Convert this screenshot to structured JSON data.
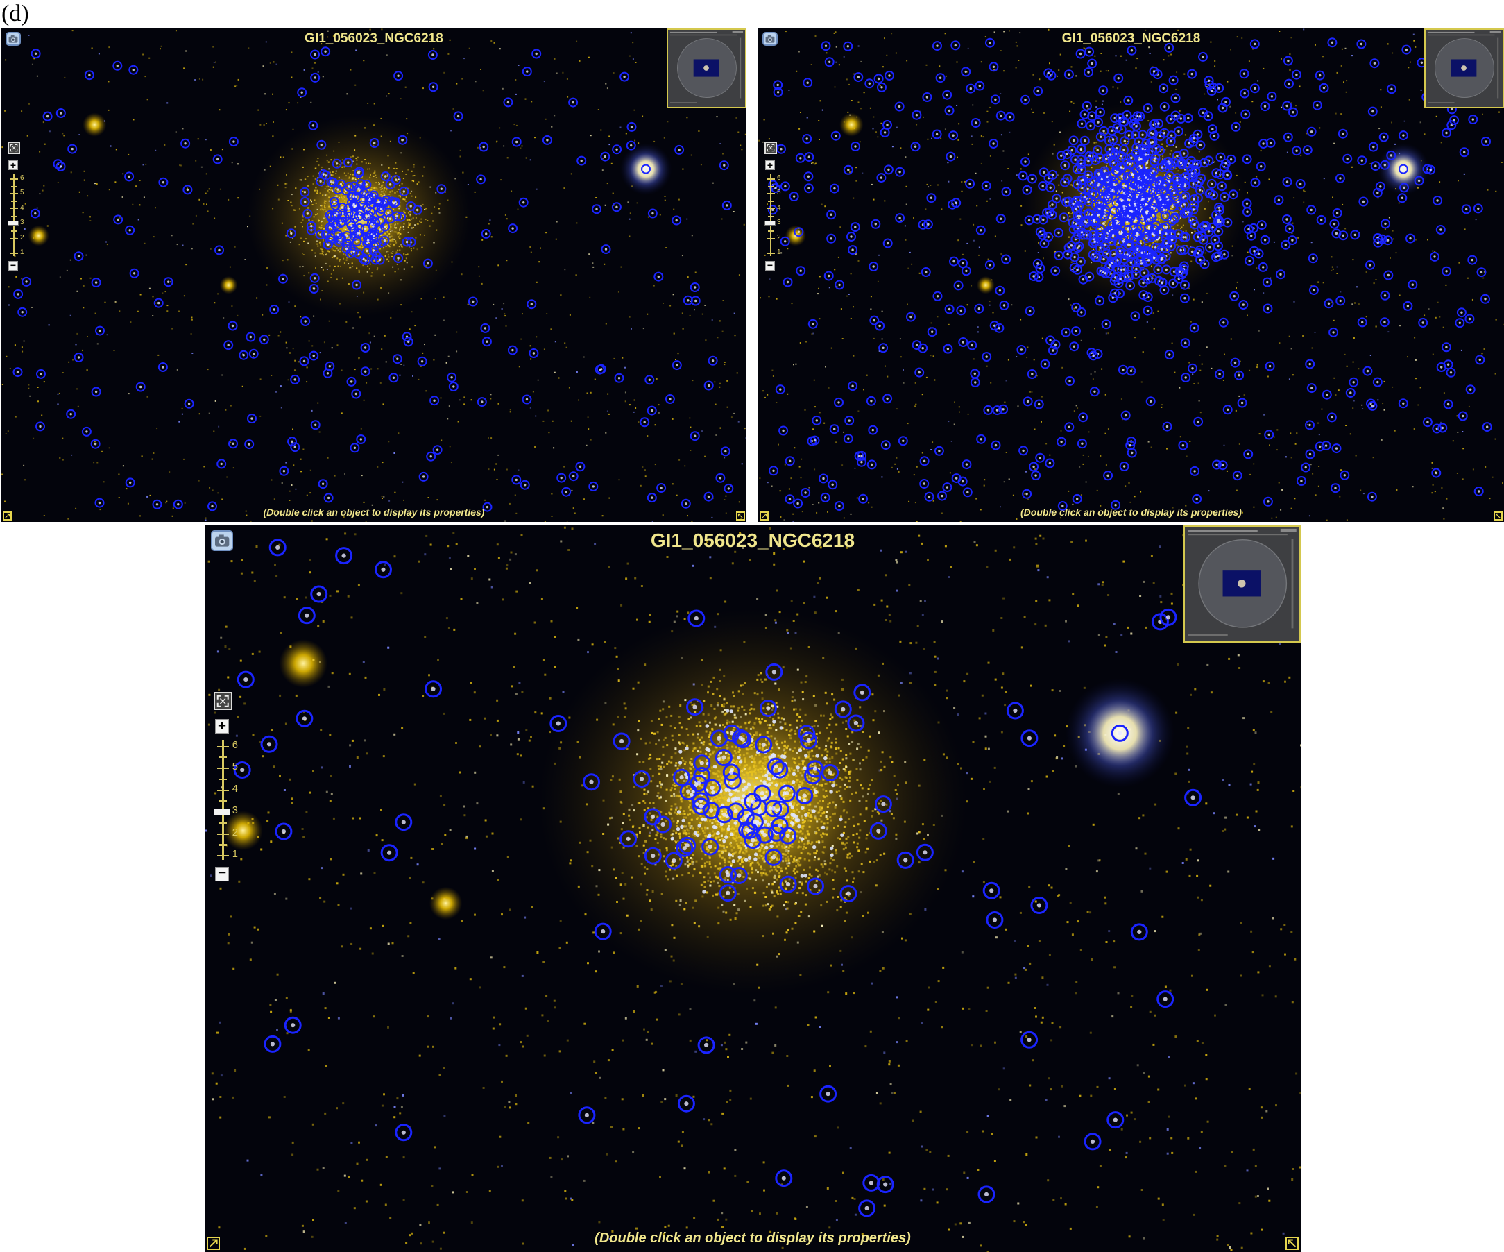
{
  "figure_label": "(d)",
  "viewers": [
    {
      "id": "top-left",
      "title": "GI1_056023_NGC6218",
      "hint": "(Double click an object to display its properties)",
      "zoom_labels": [
        "6",
        "5",
        "4",
        "3",
        "2",
        "1"
      ],
      "zoom_level": 3,
      "icons": [
        "camera-icon",
        "fit-to-screen-icon",
        "zoom-in-icon",
        "zoom-out-icon",
        "expand-icon",
        "collapse-icon"
      ]
    },
    {
      "id": "top-right",
      "title": "GI1_056023_NGC6218",
      "hint": "(Double click an object to display its properties)",
      "zoom_labels": [
        "6",
        "5",
        "4",
        "3",
        "2",
        "1"
      ],
      "zoom_level": 3,
      "icons": [
        "camera-icon",
        "fit-to-screen-icon",
        "zoom-in-icon",
        "zoom-out-icon",
        "expand-icon",
        "collapse-icon"
      ]
    },
    {
      "id": "bottom",
      "title": "GI1_056023_NGC6218",
      "hint": "(Double click an object to display its properties)",
      "zoom_labels": [
        "6",
        "5",
        "4",
        "3",
        "2",
        "1"
      ],
      "zoom_level": 3,
      "icons": [
        "camera-icon",
        "fit-to-screen-icon",
        "zoom-in-icon",
        "zoom-out-icon",
        "expand-icon",
        "collapse-icon"
      ]
    }
  ],
  "colors": {
    "background": "#03040c",
    "cluster_core": "#ffd21a",
    "source_marker": "#1a24ff",
    "ui_accent": "#e6d64e",
    "title_text": "#f0e68c"
  }
}
